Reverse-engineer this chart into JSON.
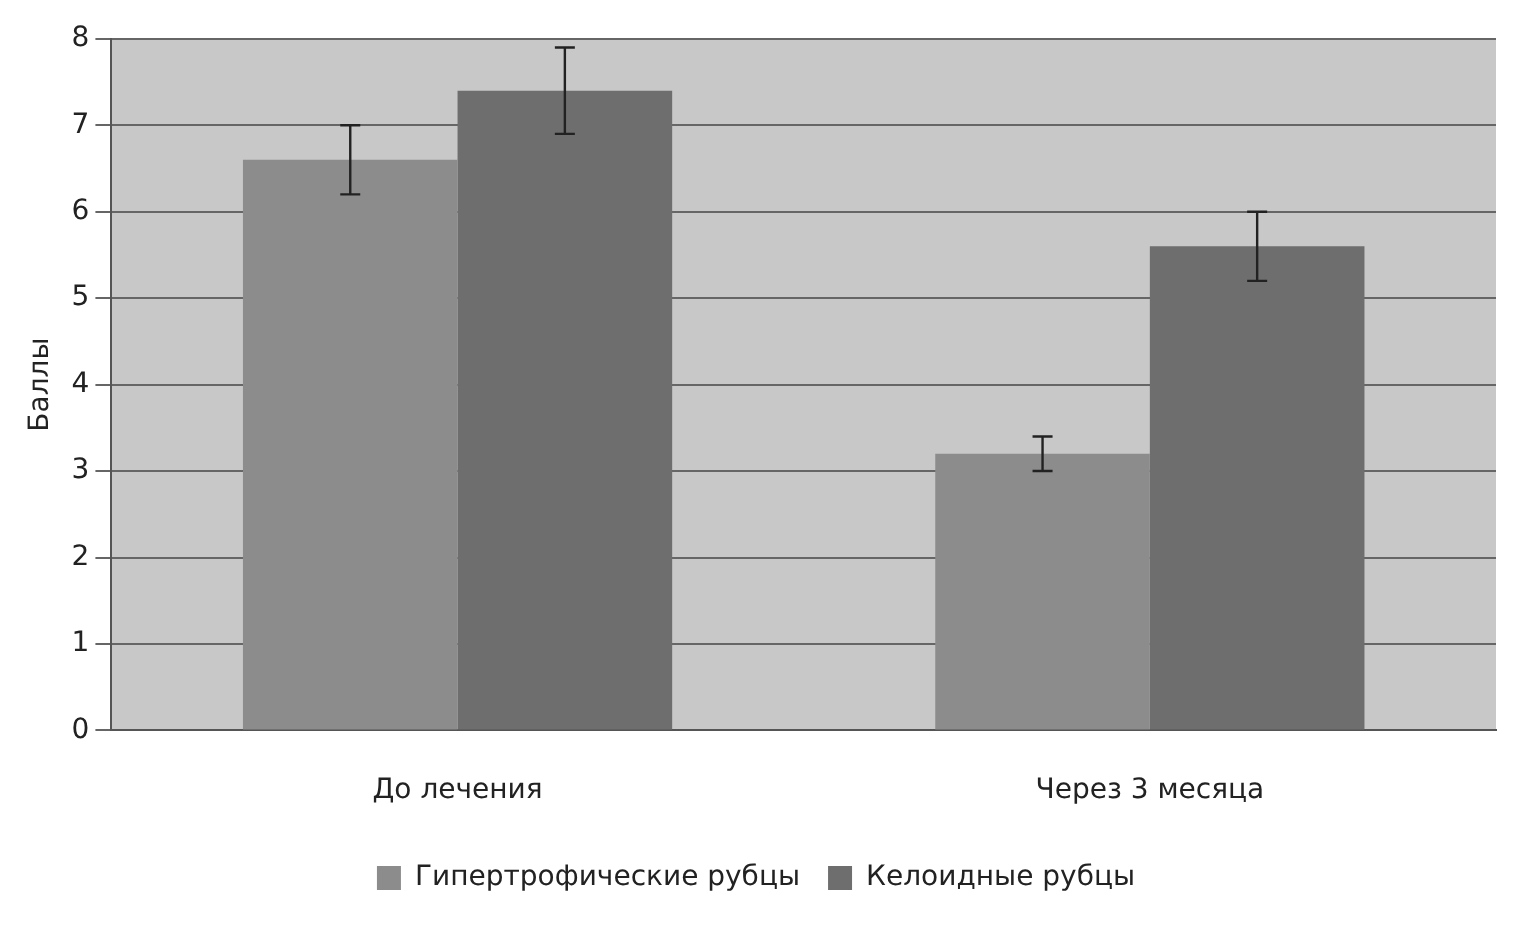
{
  "chart_data": {
    "type": "bar",
    "ylabel": "Баллы",
    "categories": [
      "До лечения",
      "Через 3 месяца"
    ],
    "series": [
      {
        "name": "Гипертрофические рубцы",
        "color": "#8c8c8c",
        "values": [
          6.6,
          3.2
        ],
        "errors": [
          0.4,
          0.2
        ]
      },
      {
        "name": "Келоидные рубцы",
        "color": "#6e6e6e",
        "values": [
          7.4,
          5.6
        ],
        "errors": [
          0.5,
          0.4
        ]
      }
    ],
    "ylim": [
      0,
      8
    ],
    "yticks": [
      0,
      1,
      2,
      3,
      4,
      5,
      6,
      7,
      8
    ],
    "grid": "y",
    "legend": "bottom"
  }
}
